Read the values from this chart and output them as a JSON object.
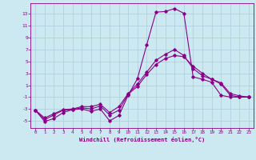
{
  "xlabel": "Windchill (Refroidissement éolien,°C)",
  "background_color": "#cce8f0",
  "grid_color": "#aaccdd",
  "line_color": "#880088",
  "xlim": [
    -0.5,
    23.5
  ],
  "ylim": [
    -6.2,
    14.8
  ],
  "yticks": [
    -5,
    -3,
    -1,
    1,
    3,
    5,
    7,
    9,
    11,
    13
  ],
  "xticks": [
    0,
    1,
    2,
    3,
    4,
    5,
    6,
    7,
    8,
    9,
    10,
    11,
    12,
    13,
    14,
    15,
    16,
    17,
    18,
    19,
    20,
    21,
    22,
    23
  ],
  "series1_x": [
    0,
    1,
    2,
    3,
    4,
    5,
    6,
    7,
    8,
    9,
    10,
    11,
    12,
    13,
    14,
    15,
    16,
    17,
    18,
    19,
    20,
    21,
    22,
    23
  ],
  "series1_y": [
    -3.2,
    -5.1,
    -4.6,
    -3.6,
    -3.1,
    -3.0,
    -3.4,
    -3.0,
    -5.0,
    -4.1,
    -0.7,
    2.1,
    7.8,
    13.3,
    13.4,
    13.9,
    13.1,
    2.4,
    2.0,
    1.5,
    -0.7,
    -1.0,
    -1.0,
    -1.0
  ],
  "series2_x": [
    0,
    1,
    2,
    3,
    4,
    5,
    6,
    7,
    8,
    9,
    10,
    11,
    12,
    13,
    14,
    15,
    16,
    17,
    18,
    19,
    20,
    21,
    22,
    23
  ],
  "series2_y": [
    -3.2,
    -4.8,
    -4.0,
    -3.2,
    -3.1,
    -2.8,
    -3.0,
    -2.5,
    -4.0,
    -3.2,
    -0.5,
    0.8,
    2.8,
    4.5,
    5.5,
    6.0,
    5.8,
    4.2,
    3.0,
    2.0,
    1.2,
    -0.7,
    -1.0,
    -1.0
  ],
  "series3_x": [
    0,
    1,
    2,
    3,
    4,
    5,
    6,
    7,
    8,
    9,
    10,
    11,
    12,
    13,
    14,
    15,
    16,
    17,
    18,
    19,
    20,
    21,
    22,
    23
  ],
  "series3_y": [
    -3.2,
    -4.5,
    -3.8,
    -3.1,
    -3.0,
    -2.6,
    -2.6,
    -2.2,
    -3.6,
    -2.6,
    -0.4,
    1.2,
    3.2,
    5.2,
    6.2,
    7.0,
    6.0,
    3.8,
    2.6,
    2.0,
    1.4,
    -0.4,
    -0.8,
    -1.0
  ]
}
